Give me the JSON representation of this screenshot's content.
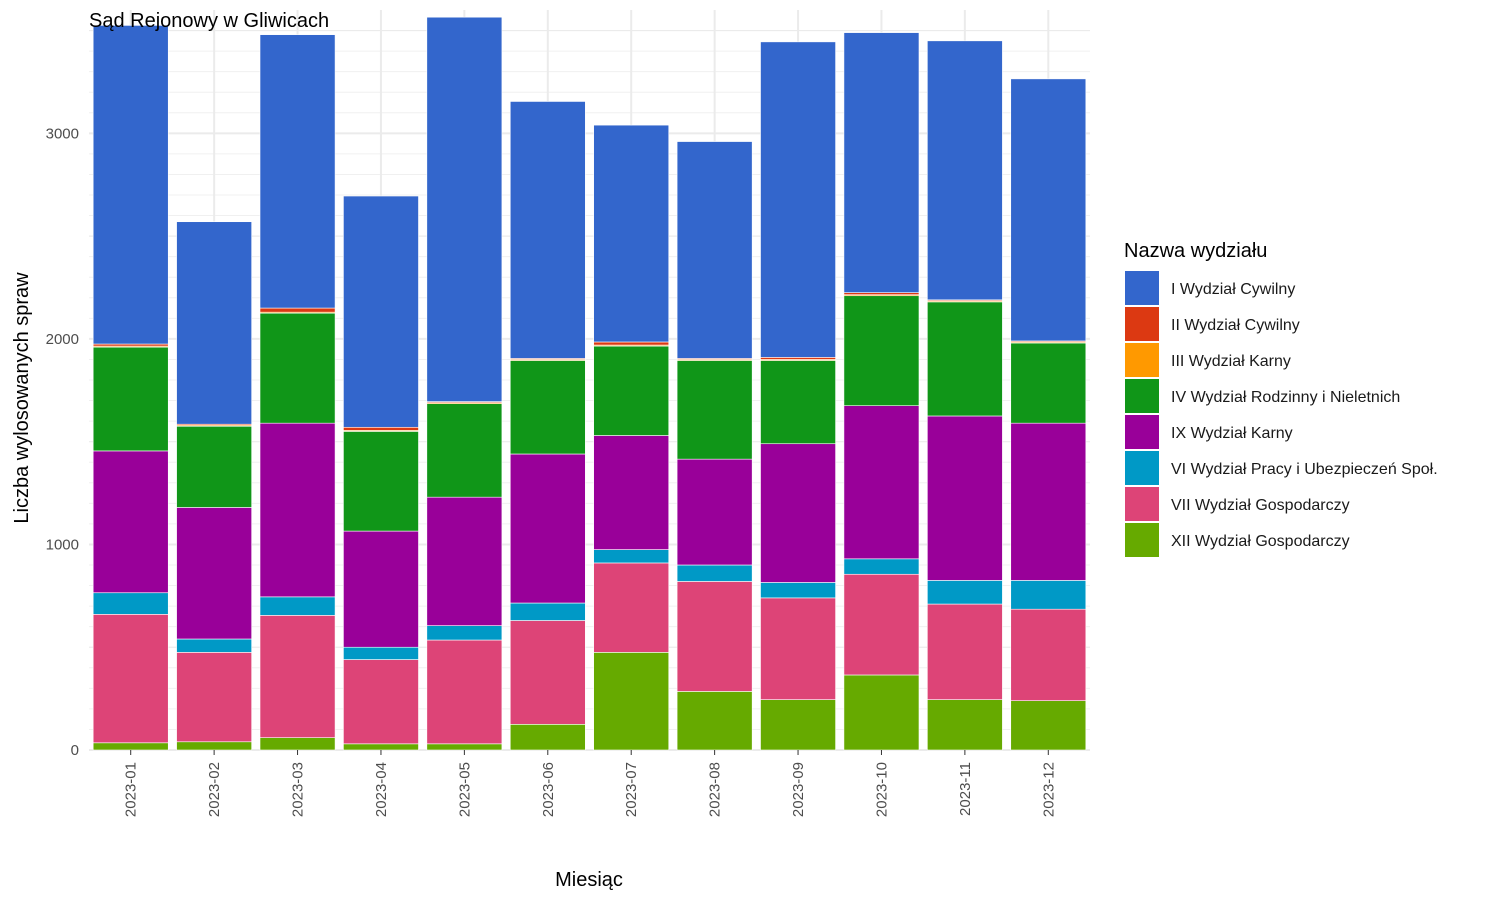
{
  "chart_data": {
    "type": "bar",
    "stacked": true,
    "title": "Sąd Rejonowy w Gliwicach",
    "xlabel": "Miesiąc",
    "ylabel": "Liczba wylosowanych spraw",
    "ylim": [
      0,
      3600
    ],
    "yticks": [
      0,
      1000,
      2000,
      3000
    ],
    "grid": true,
    "legend_title": "Nazwa wydziału",
    "legend_position": "right",
    "categories": [
      "2023-01",
      "2023-02",
      "2023-03",
      "2023-04",
      "2023-05",
      "2023-06",
      "2023-07",
      "2023-08",
      "2023-09",
      "2023-10",
      "2023-11",
      "2023-12"
    ],
    "series": [
      {
        "name": "I Wydział Cywilny",
        "color": "#3366cc",
        "values": [
          1550,
          985,
          1330,
          1125,
          1870,
          1250,
          1055,
          1055,
          1535,
          1265,
          1260,
          1275
        ]
      },
      {
        "name": "II Wydział Cywilny",
        "color": "#dc3912",
        "values": [
          10,
          5,
          20,
          15,
          5,
          5,
          15,
          5,
          10,
          10,
          5,
          5
        ]
      },
      {
        "name": "III Wydział Karny",
        "color": "#ff9900",
        "values": [
          5,
          5,
          5,
          5,
          5,
          5,
          5,
          5,
          5,
          5,
          5,
          5
        ]
      },
      {
        "name": "IV Wydział Rodzinny i Nieletnich",
        "color": "#109618",
        "values": [
          505,
          395,
          535,
          485,
          455,
          455,
          435,
          480,
          405,
          535,
          555,
          390
        ]
      },
      {
        "name": "IX Wydział Karny",
        "color": "#990099",
        "values": [
          690,
          640,
          845,
          565,
          625,
          725,
          555,
          515,
          675,
          745,
          800,
          765
        ]
      },
      {
        "name": "VI Wydział Pracy i Ubezpieczeń Społ.",
        "color": "#0099c6",
        "values": [
          105,
          65,
          90,
          60,
          70,
          85,
          65,
          80,
          75,
          75,
          115,
          140
        ]
      },
      {
        "name": "VII Wydział Gospodarczy",
        "color": "#dd4477",
        "values": [
          625,
          435,
          595,
          410,
          505,
          505,
          435,
          535,
          495,
          490,
          465,
          445
        ]
      },
      {
        "name": "XII Wydział Gospodarczy",
        "color": "#66aa00",
        "values": [
          35,
          40,
          60,
          30,
          30,
          125,
          475,
          285,
          245,
          365,
          245,
          240
        ]
      }
    ]
  }
}
